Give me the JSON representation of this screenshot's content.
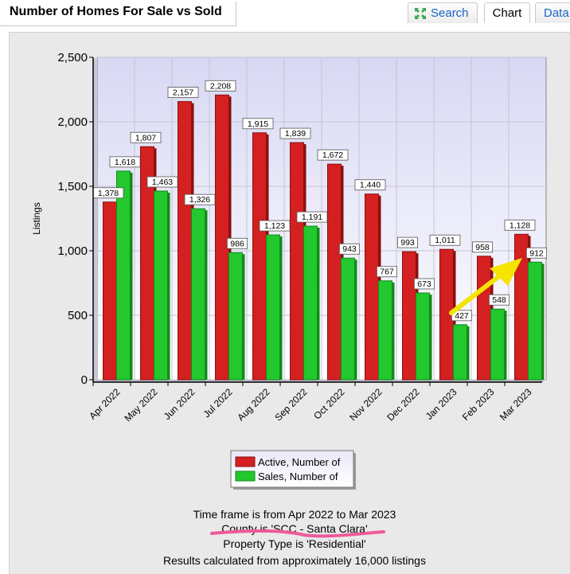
{
  "header": {
    "title": "Number of Homes For Sale vs Sold",
    "tabs": [
      {
        "label": "Search",
        "icon": "expand-arrows-icon"
      },
      {
        "label": "Chart"
      },
      {
        "label": "Data"
      }
    ]
  },
  "colors": {
    "active": "#d42020",
    "sales": "#22c82e",
    "plot_bg_top": "#d8d8f4",
    "plot_bg_bottom": "#ffffff",
    "annotation_arrow": "#f4e400",
    "annotation_underline": "#ef5a9a"
  },
  "chart_data": {
    "type": "bar",
    "ylabel": "Listings",
    "ylim": [
      0,
      2500
    ],
    "yticks": [
      0,
      500,
      1000,
      1500,
      2000,
      2500
    ],
    "ytick_labels": [
      "0",
      "500",
      "1,000",
      "1,500",
      "2,000",
      "2,500"
    ],
    "categories": [
      "Apr 2022",
      "May 2022",
      "Jun 2022",
      "Jul 2022",
      "Aug 2022",
      "Sep 2022",
      "Oct 2022",
      "Nov 2022",
      "Dec 2022",
      "Jan 2023",
      "Feb 2023",
      "Mar 2023"
    ],
    "series": [
      {
        "name": "Active, Number of",
        "values": [
          1378,
          1807,
          2157,
          2208,
          1915,
          1839,
          1672,
          1440,
          993,
          1011,
          958,
          1128
        ],
        "labels": [
          "1,378",
          "1,807",
          "2,157",
          "2,208",
          "1,915",
          "1,839",
          "1,672",
          "1,440",
          "993",
          "1,011",
          "958",
          "1,128"
        ]
      },
      {
        "name": "Sales, Number of",
        "values": [
          1618,
          1463,
          1326,
          986,
          1123,
          1191,
          943,
          767,
          673,
          427,
          548,
          912
        ],
        "labels": [
          "1,618",
          "1,463",
          "1,326",
          "986",
          "1,123",
          "1,191",
          "943",
          "767",
          "673",
          "427",
          "548",
          "912"
        ]
      }
    ],
    "grid": true,
    "legend": "bottom-center"
  },
  "info": {
    "line1": "Time frame is from Apr 2022 to Mar 2023",
    "line2": "County is 'SCC - Santa Clara'",
    "line3": "Property Type is 'Residential'",
    "line4": "Results calculated from approximately 16,000 listings"
  }
}
